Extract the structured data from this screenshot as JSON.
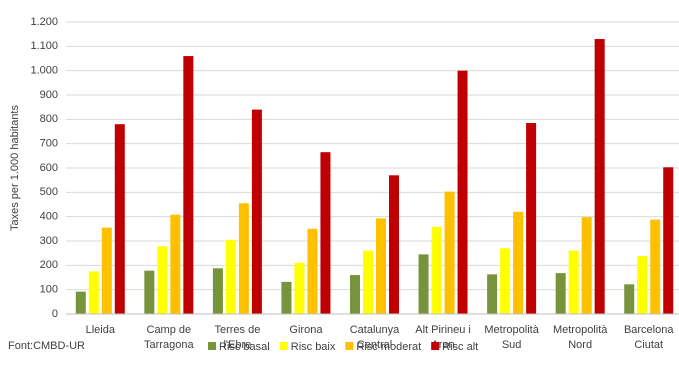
{
  "chart_data": {
    "type": "bar",
    "y_label": "Taxes per 1.000 habitants",
    "source": "Font:CMBD-UR",
    "categories": [
      "Lleida",
      "Camp de\nTarragona",
      "Terres de\nl'Ebre",
      "Girona",
      "Catalunya\nCentral",
      "Alt Pirineu i\nAran",
      "Metropolità\nSud",
      "Metropolità\nNord",
      "Barcelona\nCiutat"
    ],
    "series": [
      {
        "name": "Risc basal",
        "color": "#77933c",
        "values": [
          92,
          178,
          188,
          132,
          160,
          245,
          163,
          168,
          122
        ]
      },
      {
        "name": "Risc baix",
        "color": "#ffff00",
        "values": [
          175,
          278,
          305,
          210,
          260,
          358,
          270,
          260,
          238
        ]
      },
      {
        "name": "Risc moderat",
        "color": "#ffc000",
        "values": [
          355,
          408,
          455,
          350,
          393,
          503,
          420,
          398,
          388
        ]
      },
      {
        "name": "Risc alt",
        "color": "#c00000",
        "values": [
          780,
          1060,
          840,
          665,
          570,
          1000,
          785,
          1130,
          603
        ]
      }
    ],
    "ylim": [
      0,
      1200
    ],
    "yticks": [
      0,
      100,
      200,
      300,
      400,
      500,
      600,
      700,
      800,
      900,
      {
        "value": 1000,
        "label": "1.000"
      },
      {
        "value": 1100,
        "label": "1.100"
      },
      {
        "value": 1200,
        "label": "1.200"
      }
    ],
    "legend": "bottom"
  }
}
